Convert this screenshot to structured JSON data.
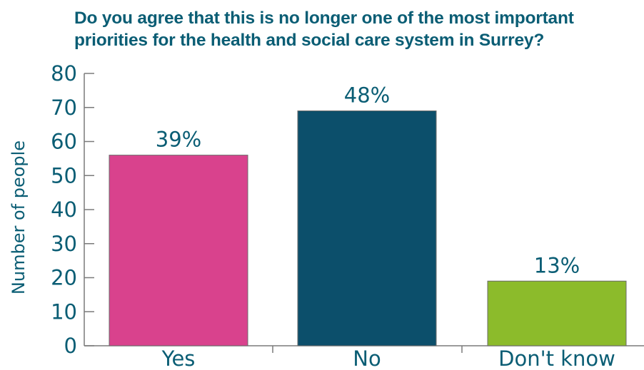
{
  "chart_data": {
    "type": "bar",
    "title": "Do you agree that this is no longer one of the most important priorities for the health and social care system in Surrey?",
    "xlabel": "",
    "ylabel": "Number of people",
    "categories": [
      "Yes",
      "No",
      "Don't know"
    ],
    "values": [
      56,
      69,
      19
    ],
    "data_labels": [
      "39%",
      "48%",
      "13%"
    ],
    "ylim": [
      0,
      80
    ],
    "yticks": [
      0,
      10,
      20,
      30,
      40,
      50,
      60,
      70,
      80
    ],
    "grid": false,
    "legend": "none",
    "colors": [
      "#d9428d",
      "#0c4f6b",
      "#8cbb2b"
    ],
    "text_color": "#0a5d74",
    "axis_color": "#7a7a7a"
  }
}
